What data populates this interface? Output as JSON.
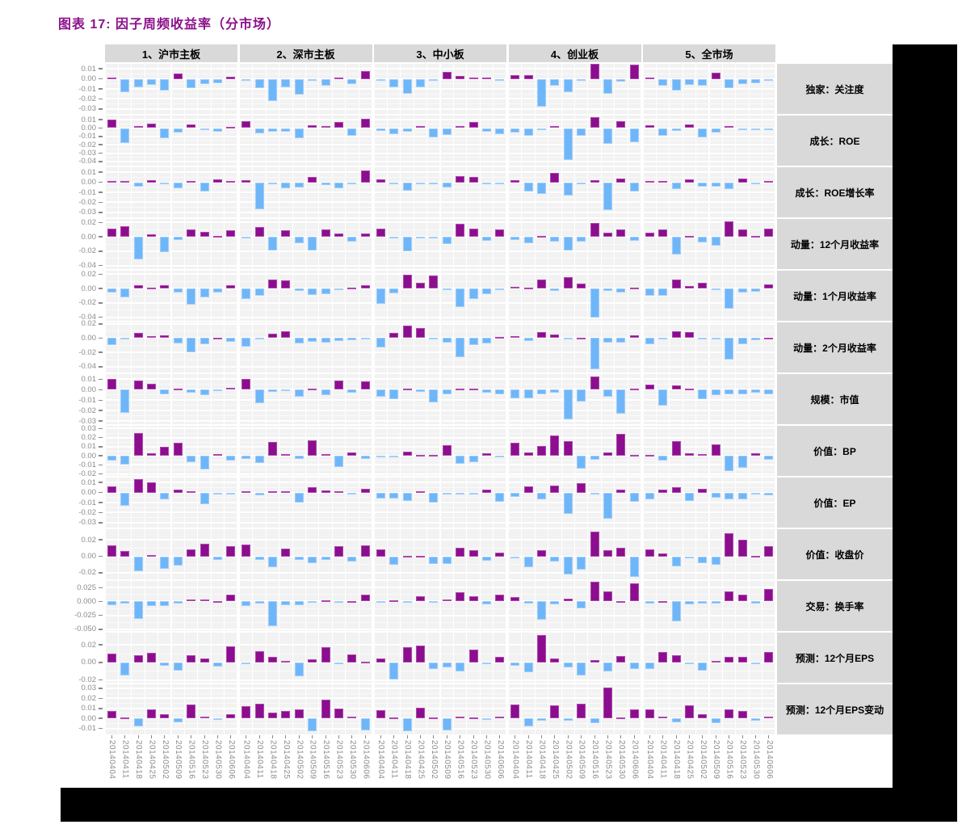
{
  "title": "图表 17:  因子周频收益率（分市场）",
  "colors": {
    "title_color": "#8B108B",
    "frame_bg": "#000000",
    "panel_bg": "#F2F2F2",
    "grid_major": "#FFFFFF",
    "grid_minor": "#FAFAFA",
    "strip_bg": "#D9D9D9",
    "axis_text": "#8C8C8C",
    "tick_mark": "#888888",
    "positive": "#8B0E8E",
    "positive_border": "#AF46AF",
    "negative": "#6FB6F9",
    "negative_border": "#9FCEFC"
  },
  "chart_data": {
    "type": "bar",
    "title": "因子周频收益率（分市场）",
    "legend": "purple = positive weekly factor return, blue = negative weekly factor return",
    "x_dates": [
      "20140404",
      "20140411",
      "20140418",
      "20140425",
      "20140502",
      "20140509",
      "20140516",
      "20140523",
      "20140530",
      "20140606"
    ],
    "columns": [
      "1、沪市主板",
      "2、深市主板",
      "3、中小板",
      "4、创业板",
      "5、全市场"
    ],
    "rows": [
      {
        "label": "独家：关注度",
        "ymax": 0.015,
        "ymin": -0.035,
        "ticks": [
          0.01,
          0,
          -0.01,
          -0.02,
          -0.03
        ],
        "tick_labels": [
          "0.01",
          "0.00",
          "-0.01",
          "-0.02",
          "-0.03"
        ],
        "values": [
          [
            0.001,
            -0.013,
            -0.008,
            -0.006,
            -0.012,
            0.005,
            -0.009,
            -0.005,
            -0.004,
            0.002
          ],
          [
            -0.001,
            -0.009,
            -0.022,
            -0.008,
            -0.016,
            -0.002,
            -0.007,
            0.001,
            -0.005,
            0.008
          ],
          [
            -0.002,
            -0.008,
            -0.015,
            -0.008,
            -0.001,
            0.007,
            0.003,
            0.001,
            0.001,
            -0.001
          ],
          [
            0.004,
            0.004,
            -0.028,
            -0.007,
            -0.013,
            -0.001,
            0.015,
            -0.015,
            -0.003,
            0.014
          ],
          [
            0.001,
            -0.007,
            -0.012,
            -0.006,
            -0.007,
            0.006,
            -0.009,
            -0.005,
            -0.004,
            -0.001
          ]
        ]
      },
      {
        "label": "成长：ROE",
        "ymax": 0.015,
        "ymin": -0.045,
        "ticks": [
          0.01,
          0,
          -0.01,
          -0.02,
          -0.03,
          -0.04
        ],
        "tick_labels": [
          "0.01",
          "0.00",
          "-0.01",
          "-0.02",
          "-0.03",
          "-0.04"
        ],
        "values": [
          [
            0.01,
            -0.018,
            0.002,
            0.005,
            -0.012,
            -0.005,
            0.004,
            -0.002,
            -0.004,
            0.001
          ],
          [
            0.008,
            -0.006,
            -0.004,
            -0.004,
            -0.012,
            0.003,
            0.002,
            0.007,
            -0.009,
            0.011
          ],
          [
            -0.003,
            -0.007,
            -0.004,
            0.002,
            -0.011,
            -0.008,
            0.002,
            0.007,
            -0.004,
            -0.007
          ],
          [
            -0.005,
            -0.009,
            -0.002,
            0.002,
            -0.038,
            -0.009,
            0.013,
            -0.019,
            0.008,
            -0.017
          ],
          [
            0.003,
            -0.009,
            -0.003,
            0.004,
            -0.011,
            -0.005,
            0.002,
            -0.002,
            -0.002,
            -0.002
          ]
        ]
      },
      {
        "label": "成长：ROE增长率",
        "ymax": 0.015,
        "ymin": -0.035,
        "ticks": [
          0.01,
          0,
          -0.01,
          -0.02,
          -0.03
        ],
        "tick_labels": [
          "0.01",
          "0.00",
          "-0.01",
          "-0.02",
          "-0.03"
        ],
        "values": [
          [
            0.001,
            0.001,
            -0.004,
            0.002,
            -0.001,
            -0.006,
            0.001,
            -0.009,
            0.003,
            0.001
          ],
          [
            0.002,
            -0.027,
            -0.002,
            -0.006,
            -0.005,
            0.005,
            -0.003,
            -0.006,
            -0.001,
            0.012
          ],
          [
            0.003,
            -0.001,
            -0.008,
            -0.001,
            -0.002,
            -0.005,
            0.006,
            0.005,
            -0.002,
            -0.002
          ],
          [
            0.002,
            -0.009,
            -0.012,
            0.009,
            -0.013,
            -0.002,
            0.002,
            -0.028,
            0.004,
            -0.009
          ],
          [
            0.001,
            0.001,
            -0.007,
            0.003,
            -0.004,
            -0.004,
            -0.007,
            0.004,
            -0.001,
            0.001
          ]
        ]
      },
      {
        "label": "动量：12个月收益率",
        "ymax": 0.025,
        "ymin": -0.045,
        "ticks": [
          0.02,
          0,
          -0.02,
          -0.04
        ],
        "tick_labels": [
          "0.02",
          "0.00",
          "-0.02",
          "-0.04"
        ],
        "values": [
          [
            0.011,
            0.015,
            -0.032,
            0.004,
            -0.021,
            -0.004,
            0.01,
            0.007,
            0.001,
            0.009
          ],
          [
            -0.001,
            0.014,
            -0.019,
            0.009,
            -0.009,
            -0.019,
            0.01,
            0.005,
            -0.007,
            0.005
          ],
          [
            0.012,
            -0.001,
            -0.02,
            -0.001,
            -0.002,
            -0.01,
            0.018,
            0.011,
            -0.005,
            0.01
          ],
          [
            -0.004,
            -0.009,
            0.001,
            -0.007,
            -0.019,
            -0.007,
            0.019,
            0.006,
            0.01,
            -0.005
          ],
          [
            0.006,
            0.01,
            -0.025,
            0.001,
            -0.008,
            -0.012,
            0.022,
            0.01,
            0.001,
            0.012
          ]
        ]
      },
      {
        "label": "动量：1个月收益率",
        "ymax": 0.025,
        "ymin": -0.045,
        "ticks": [
          0.02,
          0,
          -0.02,
          -0.04
        ],
        "tick_labels": [
          "0.02",
          "0.00",
          "-0.02",
          "-0.04"
        ],
        "values": [
          [
            -0.005,
            -0.012,
            0.005,
            0.001,
            0.005,
            -0.005,
            -0.022,
            -0.012,
            -0.006,
            0.005
          ],
          [
            -0.015,
            -0.01,
            0.013,
            0.012,
            -0.003,
            -0.009,
            -0.008,
            -0.001,
            0.001,
            0.005
          ],
          [
            -0.021,
            -0.007,
            0.019,
            0.008,
            0.018,
            -0.002,
            -0.026,
            -0.014,
            -0.008,
            -0.001
          ],
          [
            0.002,
            0.001,
            0.013,
            -0.003,
            0.016,
            0.007,
            -0.04,
            -0.003,
            -0.005,
            0.001
          ],
          [
            -0.01,
            -0.01,
            0.013,
            0.004,
            0.008,
            -0.002,
            -0.028,
            -0.005,
            -0.004,
            0.006
          ]
        ]
      },
      {
        "label": "动量：2个月收益率",
        "ymax": 0.022,
        "ymin": -0.048,
        "ticks": [
          0.02,
          0,
          -0.02,
          -0.04
        ],
        "tick_labels": [
          "0.02",
          "0.00",
          "-0.02",
          "-0.04"
        ],
        "values": [
          [
            -0.01,
            -0.002,
            0.007,
            0.003,
            0.004,
            -0.007,
            -0.02,
            -0.009,
            0.001,
            -0.005
          ],
          [
            -0.012,
            -0.002,
            0.006,
            0.01,
            -0.007,
            -0.005,
            -0.006,
            -0.004,
            -0.003,
            -0.001
          ],
          [
            -0.013,
            0.007,
            0.017,
            0.014,
            -0.001,
            -0.006,
            -0.027,
            -0.01,
            -0.007,
            0.002
          ],
          [
            0.003,
            -0.004,
            0.008,
            0.005,
            -0.002,
            0.001,
            -0.043,
            -0.006,
            -0.006,
            0.004
          ],
          [
            -0.008,
            -0.002,
            0.01,
            0.009,
            -0.001,
            -0.001,
            -0.03,
            -0.008,
            -0.003,
            0.001
          ]
        ]
      },
      {
        "label": "规模：市值",
        "ymax": 0.015,
        "ymin": -0.033,
        "ticks": [
          0.01,
          0,
          -0.01,
          -0.02,
          -0.03
        ],
        "tick_labels": [
          "0.01",
          "0.00",
          "-0.01",
          "-0.02",
          "-0.03"
        ],
        "values": [
          [
            0.01,
            -0.022,
            0.009,
            0.006,
            -0.004,
            0.001,
            -0.003,
            -0.005,
            -0.001,
            0.002
          ],
          [
            0.01,
            -0.013,
            -0.002,
            -0.001,
            -0.007,
            0.001,
            -0.005,
            0.009,
            -0.003,
            0.008
          ],
          [
            -0.007,
            -0.009,
            0.001,
            -0.002,
            -0.012,
            -0.004,
            0.001,
            0.001,
            -0.003,
            -0.004
          ],
          [
            -0.008,
            -0.008,
            -0.004,
            -0.003,
            -0.028,
            -0.011,
            0.013,
            -0.007,
            -0.023,
            0.001
          ],
          [
            0.005,
            -0.015,
            0.004,
            0.001,
            -0.009,
            -0.005,
            -0.004,
            -0.004,
            -0.003,
            -0.004
          ]
        ]
      },
      {
        "label": "价值：BP",
        "ymax": 0.033,
        "ymin": -0.022,
        "ticks": [
          0.03,
          0.02,
          0.01,
          0,
          -0.01,
          -0.02
        ],
        "tick_labels": [
          "0.03",
          "0.02",
          "0.01",
          "0.00",
          "-0.01",
          "-0.02"
        ],
        "values": [
          [
            -0.005,
            -0.01,
            0.025,
            0.003,
            0.01,
            0.014,
            -0.007,
            -0.015,
            0.002,
            -0.005
          ],
          [
            -0.003,
            -0.008,
            0.015,
            0.002,
            -0.003,
            0.017,
            0.002,
            -0.012,
            0.004,
            -0.003
          ],
          [
            -0.002,
            -0.001,
            0.005,
            0.001,
            0.001,
            0.012,
            -0.009,
            -0.007,
            0.003,
            -0.002
          ],
          [
            0.014,
            0.004,
            0.011,
            0.022,
            0.016,
            -0.014,
            -0.004,
            0.004,
            0.024,
            0.001
          ],
          [
            0.001,
            -0.005,
            0.016,
            0.003,
            0.002,
            0.013,
            -0.017,
            -0.013,
            0.003,
            -0.004
          ]
        ]
      },
      {
        "label": "价值：EP",
        "ymax": 0.015,
        "ymin": -0.035,
        "ticks": [
          0.01,
          0,
          -0.01,
          -0.02,
          -0.03
        ],
        "tick_labels": [
          "0.01",
          "0.00",
          "-0.01",
          "-0.02",
          "-0.03"
        ],
        "values": [
          [
            0.006,
            -0.013,
            0.013,
            0.01,
            -0.007,
            0.003,
            0.001,
            -0.012,
            -0.002,
            -0.002
          ],
          [
            0.001,
            -0.003,
            0.001,
            0.001,
            -0.01,
            0.005,
            0.002,
            0.001,
            -0.002,
            0.004
          ],
          [
            -0.006,
            -0.006,
            -0.008,
            0.001,
            -0.01,
            -0.002,
            -0.001,
            -0.001,
            0.003,
            -0.009
          ],
          [
            -0.004,
            0.006,
            -0.007,
            0.007,
            -0.021,
            0.009,
            -0.002,
            -0.026,
            0.003,
            -0.009
          ],
          [
            -0.007,
            0.003,
            0.005,
            -0.008,
            0.004,
            -0.005,
            -0.007,
            -0.007,
            -0.001,
            -0.003
          ]
        ]
      },
      {
        "label": "价值：收盘价",
        "ymax": 0.033,
        "ymin": -0.028,
        "ticks": [
          0.02,
          0,
          -0.02
        ],
        "tick_labels": [
          "0.02",
          "0.00",
          "-0.02"
        ],
        "values": [
          [
            0.013,
            0.006,
            -0.018,
            0.002,
            -0.015,
            -0.011,
            0.008,
            0.015,
            -0.004,
            0.012
          ],
          [
            0.014,
            -0.004,
            -0.013,
            0.009,
            -0.004,
            -0.008,
            -0.004,
            0.012,
            -0.006,
            0.013
          ],
          [
            0.008,
            -0.01,
            0.001,
            0.001,
            -0.009,
            -0.009,
            0.01,
            0.007,
            -0.005,
            0.004
          ],
          [
            -0.002,
            -0.013,
            0.007,
            -0.006,
            -0.022,
            -0.016,
            0.03,
            0.007,
            0.01,
            -0.025
          ],
          [
            0.008,
            0.003,
            -0.012,
            -0.001,
            -0.008,
            -0.01,
            0.028,
            0.02,
            0.001,
            0.012
          ]
        ]
      },
      {
        "label": "交易：换手率",
        "ymax": 0.037,
        "ymin": -0.053,
        "ticks": [
          0.025,
          0,
          -0.025,
          -0.05
        ],
        "tick_labels": [
          "0.025",
          "0.000",
          "-0.025",
          "-0.050"
        ],
        "values": [
          [
            -0.006,
            -0.003,
            -0.031,
            -0.008,
            -0.008,
            -0.004,
            0.003,
            0.004,
            0.001,
            0.013
          ],
          [
            -0.008,
            -0.003,
            -0.045,
            -0.006,
            -0.006,
            -0.001,
            0.002,
            -0.001,
            0.001,
            0.013
          ],
          [
            -0.001,
            0.002,
            -0.002,
            0.01,
            -0.001,
            0.004,
            0.016,
            0.01,
            -0.005,
            0.012
          ],
          [
            0.008,
            -0.004,
            -0.033,
            -0.005,
            0.005,
            -0.013,
            0.035,
            0.018,
            0.001,
            0.032
          ],
          [
            -0.004,
            0.001,
            -0.035,
            -0.005,
            -0.004,
            -0.004,
            0.018,
            0.012,
            -0.004,
            0.022
          ]
        ]
      },
      {
        "label": "预测：12个月EPS",
        "ymax": 0.034,
        "ymin": -0.023,
        "ticks": [
          0.02,
          0,
          -0.02
        ],
        "tick_labels": [
          "0.02",
          "0.00",
          "-0.02"
        ],
        "values": [
          [
            0.01,
            -0.015,
            0.008,
            0.011,
            -0.004,
            -0.009,
            0.008,
            0.005,
            -0.005,
            0.018
          ],
          [
            -0.002,
            0.013,
            0.006,
            0.002,
            -0.016,
            0.004,
            0.017,
            -0.002,
            0.009,
            0.001
          ],
          [
            0.005,
            -0.019,
            0.017,
            0.019,
            -0.007,
            -0.006,
            -0.01,
            0.015,
            -0.001,
            0.006
          ],
          [
            -0.004,
            -0.011,
            0.031,
            0.005,
            -0.006,
            -0.015,
            0.003,
            -0.01,
            0.007,
            -0.007
          ],
          [
            -0.007,
            0.012,
            0.008,
            -0.002,
            -0.009,
            0.002,
            0.006,
            0.006,
            -0.001,
            0.012
          ]
        ]
      },
      {
        "label": "预测：12个月EPS变动",
        "ymax": 0.034,
        "ymin": -0.016,
        "ticks": [
          0.03,
          0.02,
          0.01,
          0,
          -0.01
        ],
        "tick_labels": [
          "0.03",
          "0.02",
          "0.01",
          "0.00",
          "-0.01"
        ],
        "values": [
          [
            0.007,
            0.001,
            -0.008,
            0.009,
            0.004,
            -0.004,
            0.014,
            0.002,
            -0.001,
            0.004
          ],
          [
            0.012,
            0.015,
            0.006,
            0.007,
            0.009,
            -0.013,
            0.019,
            0.01,
            0.002,
            -0.012
          ],
          [
            0.008,
            0.001,
            -0.013,
            0.011,
            0.001,
            -0.012,
            0.002,
            0.001,
            -0.001,
            0.002
          ],
          [
            0.014,
            -0.008,
            -0.002,
            0.013,
            -0.002,
            0.015,
            -0.005,
            0.031,
            0.001,
            0.009
          ],
          [
            0.009,
            0.002,
            -0.004,
            0.013,
            0.004,
            -0.005,
            0.009,
            0.007,
            -0.002,
            0.002
          ]
        ]
      }
    ]
  }
}
